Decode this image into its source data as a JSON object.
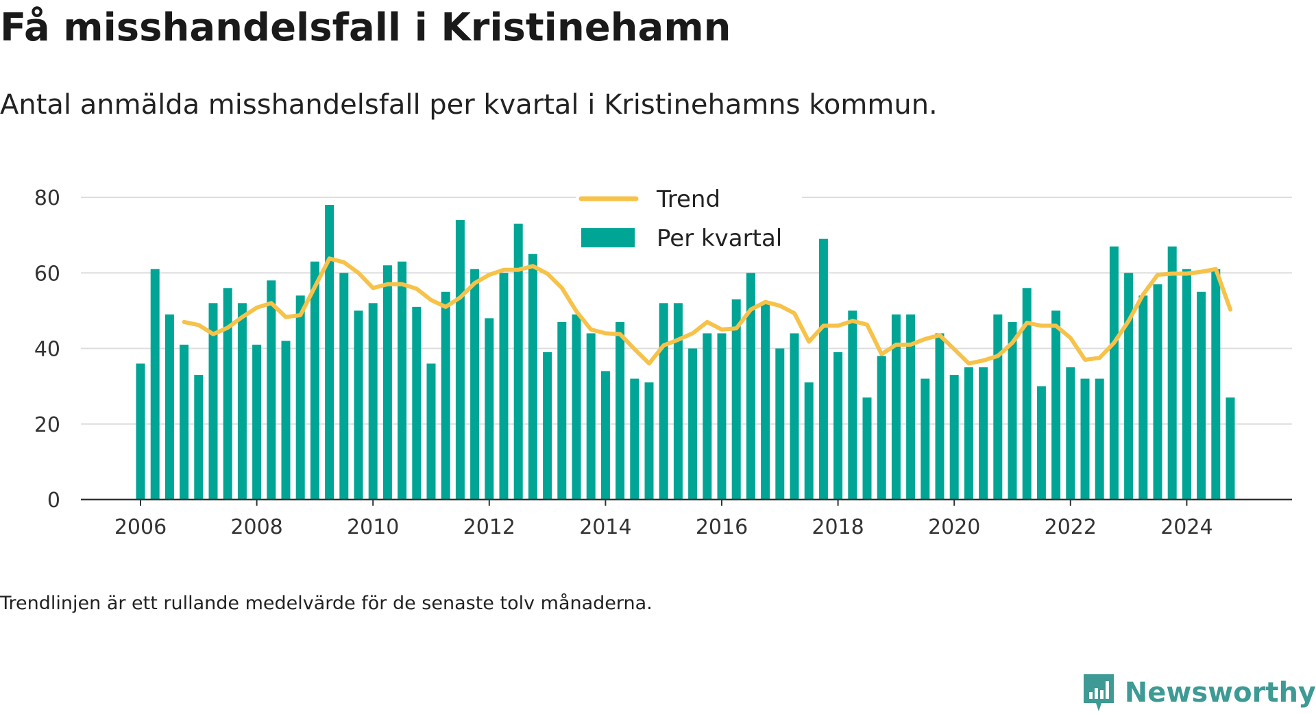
{
  "title": "Få misshandelsfall i Kristinehamn",
  "subtitle": "Antal anmälda misshandelsfall per kvartal i Kristinehamns kommun.",
  "note": "Trendlinjen är ett rullande medelvärde för de senaste tolv månaderna.",
  "brand": "Newsworthy",
  "colors": {
    "bar": "#00a595",
    "trend": "#f7c24a",
    "grid": "#dddddd",
    "axis": "#333333",
    "brand": "#3d9a94"
  },
  "chart_data": {
    "type": "bar",
    "title": "",
    "xlabel": "",
    "ylabel": "",
    "ylim": [
      0,
      80
    ],
    "yticks": [
      0,
      20,
      40,
      60,
      80
    ],
    "xticks": [
      "2006",
      "2008",
      "2010",
      "2012",
      "2014",
      "2016",
      "2018",
      "2020",
      "2022",
      "2024"
    ],
    "grid": true,
    "legend_position": "top-center",
    "categories": [
      "2006 Q1",
      "2006 Q2",
      "2006 Q3",
      "2006 Q4",
      "2007 Q1",
      "2007 Q2",
      "2007 Q3",
      "2007 Q4",
      "2008 Q1",
      "2008 Q2",
      "2008 Q3",
      "2008 Q4",
      "2009 Q1",
      "2009 Q2",
      "2009 Q3",
      "2009 Q4",
      "2010 Q1",
      "2010 Q2",
      "2010 Q3",
      "2010 Q4",
      "2011 Q1",
      "2011 Q2",
      "2011 Q3",
      "2011 Q4",
      "2012 Q1",
      "2012 Q2",
      "2012 Q3",
      "2012 Q4",
      "2013 Q1",
      "2013 Q2",
      "2013 Q3",
      "2013 Q4",
      "2014 Q1",
      "2014 Q2",
      "2014 Q3",
      "2014 Q4",
      "2015 Q1",
      "2015 Q2",
      "2015 Q3",
      "2015 Q4",
      "2016 Q1",
      "2016 Q2",
      "2016 Q3",
      "2016 Q4",
      "2017 Q1",
      "2017 Q2",
      "2017 Q3",
      "2017 Q4",
      "2018 Q1",
      "2018 Q2",
      "2018 Q3",
      "2018 Q4",
      "2019 Q1",
      "2019 Q2",
      "2019 Q3",
      "2019 Q4",
      "2020 Q1",
      "2020 Q2",
      "2020 Q3",
      "2020 Q4",
      "2021 Q1",
      "2021 Q2",
      "2021 Q3",
      "2021 Q4",
      "2022 Q1",
      "2022 Q2",
      "2022 Q3",
      "2022 Q4",
      "2023 Q1",
      "2023 Q2",
      "2023 Q3",
      "2023 Q4",
      "2024 Q1",
      "2024 Q2",
      "2024 Q3",
      "2024 Q4"
    ],
    "series": [
      {
        "name": "Per kvartal",
        "type": "bar",
        "values": [
          36,
          61,
          49,
          41,
          33,
          52,
          56,
          52,
          41,
          58,
          42,
          54,
          63,
          78,
          60,
          50,
          52,
          62,
          63,
          51,
          36,
          55,
          74,
          61,
          48,
          60,
          73,
          65,
          39,
          47,
          49,
          44,
          34,
          47,
          32,
          31,
          52,
          52,
          40,
          44,
          44,
          53,
          60,
          52,
          40,
          44,
          31,
          69,
          39,
          50,
          27,
          38,
          49,
          49,
          32,
          44,
          33,
          35,
          35,
          49,
          47,
          56,
          30,
          50,
          35,
          32,
          32,
          67,
          60,
          54,
          57,
          67,
          61,
          55,
          61,
          27
        ]
      },
      {
        "name": "Trend",
        "type": "line",
        "values": [
          null,
          null,
          null,
          47,
          46.2,
          43.8,
          45.5,
          48.3,
          50.8,
          52,
          48.3,
          48.8,
          56.3,
          63.8,
          62.8,
          60,
          56,
          57,
          57,
          55.8,
          52.8,
          51,
          53.5,
          57.3,
          59.5,
          60.8,
          60.8,
          61.8,
          59.8,
          56,
          49.8,
          45,
          44,
          43.8,
          39.8,
          36,
          40.8,
          42.3,
          44,
          47,
          45,
          45.3,
          50.3,
          52.3,
          51.3,
          49.3,
          41.8,
          46,
          46,
          47.3,
          46.3,
          38.5,
          41,
          41,
          42.5,
          43.5,
          39.8,
          36,
          36.8,
          38,
          41.5,
          46.8,
          46,
          46,
          42.8,
          37,
          37.5,
          41.5,
          47.3,
          54.3,
          59.5,
          59.8,
          59.8,
          60.3,
          61,
          50.3
        ]
      }
    ]
  }
}
